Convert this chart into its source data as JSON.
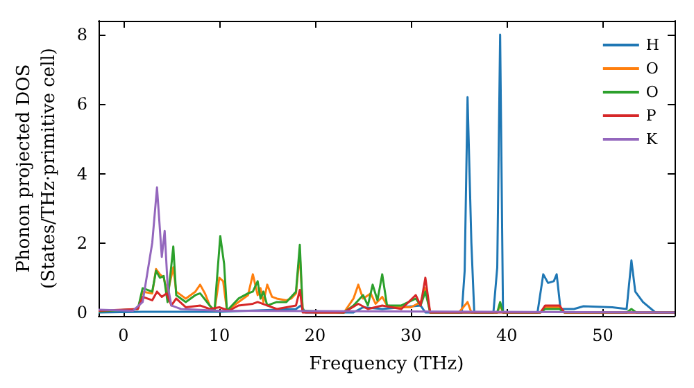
{
  "chart_data": {
    "type": "line",
    "xlabel": "Frequency (THz)",
    "ylabel": "Phonon projected DOS\n(States/THz·primitive cell)",
    "xlim": [
      -2.6,
      57.5
    ],
    "ylim": [
      -0.1,
      8.4
    ],
    "xticks": [
      0,
      10,
      20,
      30,
      40,
      50
    ],
    "yticks": [
      0,
      2,
      4,
      6,
      8
    ],
    "grid": false,
    "legend": "top right",
    "marker": "none",
    "line_style": "solid",
    "series": [
      {
        "name": "H",
        "color": "#1f77b4",
        "x": [
          -2.6,
          2,
          10,
          18,
          18.5,
          19,
          24,
          25,
          27,
          31,
          31.5,
          35.3,
          35.6,
          35.9,
          36.3,
          36.6,
          38.6,
          39,
          39.3,
          39.6,
          43.2,
          43.8,
          44.3,
          44.9,
          45.2,
          45.6,
          47,
          48,
          51,
          52.5,
          53,
          53.4,
          54.2,
          55.5,
          57.5
        ],
        "values": [
          0,
          0.02,
          0.02,
          0.1,
          0.2,
          0,
          0,
          0.15,
          0.1,
          0.2,
          0,
          0,
          1.2,
          6.2,
          2,
          0,
          0,
          1.3,
          8.0,
          0,
          0,
          1.1,
          0.85,
          0.9,
          1.1,
          0.1,
          0.1,
          0.18,
          0.15,
          0.1,
          1.5,
          0.6,
          0.3,
          0,
          0
        ]
      },
      {
        "name": "O",
        "color": "#ff7f0e",
        "x": [
          1.5,
          2,
          3,
          3.4,
          3.8,
          4.2,
          4.6,
          5.2,
          5.5,
          6.5,
          7.5,
          8,
          8.5,
          9,
          9.5,
          10,
          10.4,
          10.8,
          12,
          13,
          13.5,
          14,
          14.3,
          14.6,
          15,
          15.5,
          16,
          17,
          17.5,
          18,
          18.4,
          18.7,
          20,
          23,
          24,
          24.5,
          25,
          25.8,
          26.3,
          27,
          27.5,
          29,
          30,
          31,
          31.5,
          32,
          35,
          35.9,
          36.3,
          39,
          39.3,
          39.6,
          43.5,
          44,
          45.5,
          46,
          57.5
        ],
        "values": [
          0.1,
          0.6,
          0.55,
          1.25,
          1.1,
          1.0,
          0.55,
          1.3,
          0.6,
          0.4,
          0.6,
          0.8,
          0.55,
          0.2,
          0.05,
          1.0,
          0.9,
          0.05,
          0.3,
          0.5,
          1.1,
          0.5,
          0.7,
          0.3,
          0.8,
          0.45,
          0.4,
          0.35,
          0.4,
          0.55,
          1.7,
          0.05,
          0,
          0,
          0.4,
          0.8,
          0.4,
          0.55,
          0.25,
          0.45,
          0.2,
          0.15,
          0.15,
          0.3,
          0.7,
          0,
          0,
          0.3,
          0,
          0,
          0.2,
          0,
          0,
          0.15,
          0.15,
          0,
          0
        ]
      },
      {
        "name": "O",
        "color": "#2ca02c",
        "x": [
          -2.6,
          1.5,
          2,
          3,
          3.4,
          3.8,
          4.2,
          4.6,
          5.2,
          5.5,
          6.5,
          7.5,
          8,
          9,
          9.5,
          10.1,
          10.5,
          10.8,
          12,
          13,
          13.5,
          14,
          14.3,
          14.6,
          15,
          16,
          17,
          18,
          18.4,
          18.7,
          23,
          24,
          25,
          25.5,
          26,
          26.5,
          27,
          27.5,
          29,
          30.5,
          31,
          31.5,
          32,
          39,
          39.3,
          39.6,
          43.5,
          44,
          45.5,
          46,
          52.5,
          53,
          53.5,
          57.5
        ],
        "values": [
          0.03,
          0.1,
          0.7,
          0.6,
          1.2,
          1.0,
          1.05,
          0.3,
          1.9,
          0.5,
          0.3,
          0.5,
          0.55,
          0.2,
          0.05,
          2.2,
          1.4,
          0.05,
          0.4,
          0.55,
          0.6,
          0.9,
          0.4,
          0.6,
          0.2,
          0.3,
          0.3,
          0.6,
          1.95,
          0.05,
          0,
          0.2,
          0.5,
          0.2,
          0.8,
          0.35,
          1.1,
          0.2,
          0.2,
          0.4,
          0.2,
          0.6,
          0,
          0,
          0.3,
          0,
          0,
          0.1,
          0.1,
          0,
          0,
          0.1,
          0,
          0
        ]
      },
      {
        "name": "P",
        "color": "#d62728",
        "x": [
          -2.6,
          1.5,
          2,
          3,
          3.5,
          4,
          4.5,
          5,
          5.5,
          6.5,
          8,
          9,
          10,
          11,
          12,
          13.5,
          14,
          15,
          16,
          18,
          18.4,
          18.7,
          23,
          24.5,
          25.5,
          27,
          29,
          30.5,
          31,
          31.5,
          32,
          43.5,
          44,
          45.5,
          46,
          57.5
        ],
        "values": [
          0.05,
          0.1,
          0.45,
          0.35,
          0.6,
          0.45,
          0.55,
          0.2,
          0.4,
          0.15,
          0.2,
          0.1,
          0.15,
          0.05,
          0.2,
          0.25,
          0.3,
          0.2,
          0.1,
          0.2,
          0.65,
          0,
          0,
          0.25,
          0.1,
          0.2,
          0.1,
          0.5,
          0.2,
          1.0,
          0,
          0,
          0.2,
          0.2,
          0,
          0
        ]
      },
      {
        "name": "K",
        "color": "#9467bd",
        "x": [
          -2.6,
          1,
          2,
          3,
          3.5,
          4,
          4.3,
          4.6,
          5,
          6,
          10,
          57.5
        ],
        "values": [
          0.08,
          0.05,
          0.3,
          2.0,
          3.6,
          1.6,
          2.35,
          0.8,
          0.2,
          0.1,
          0.05,
          0
        ]
      }
    ]
  }
}
